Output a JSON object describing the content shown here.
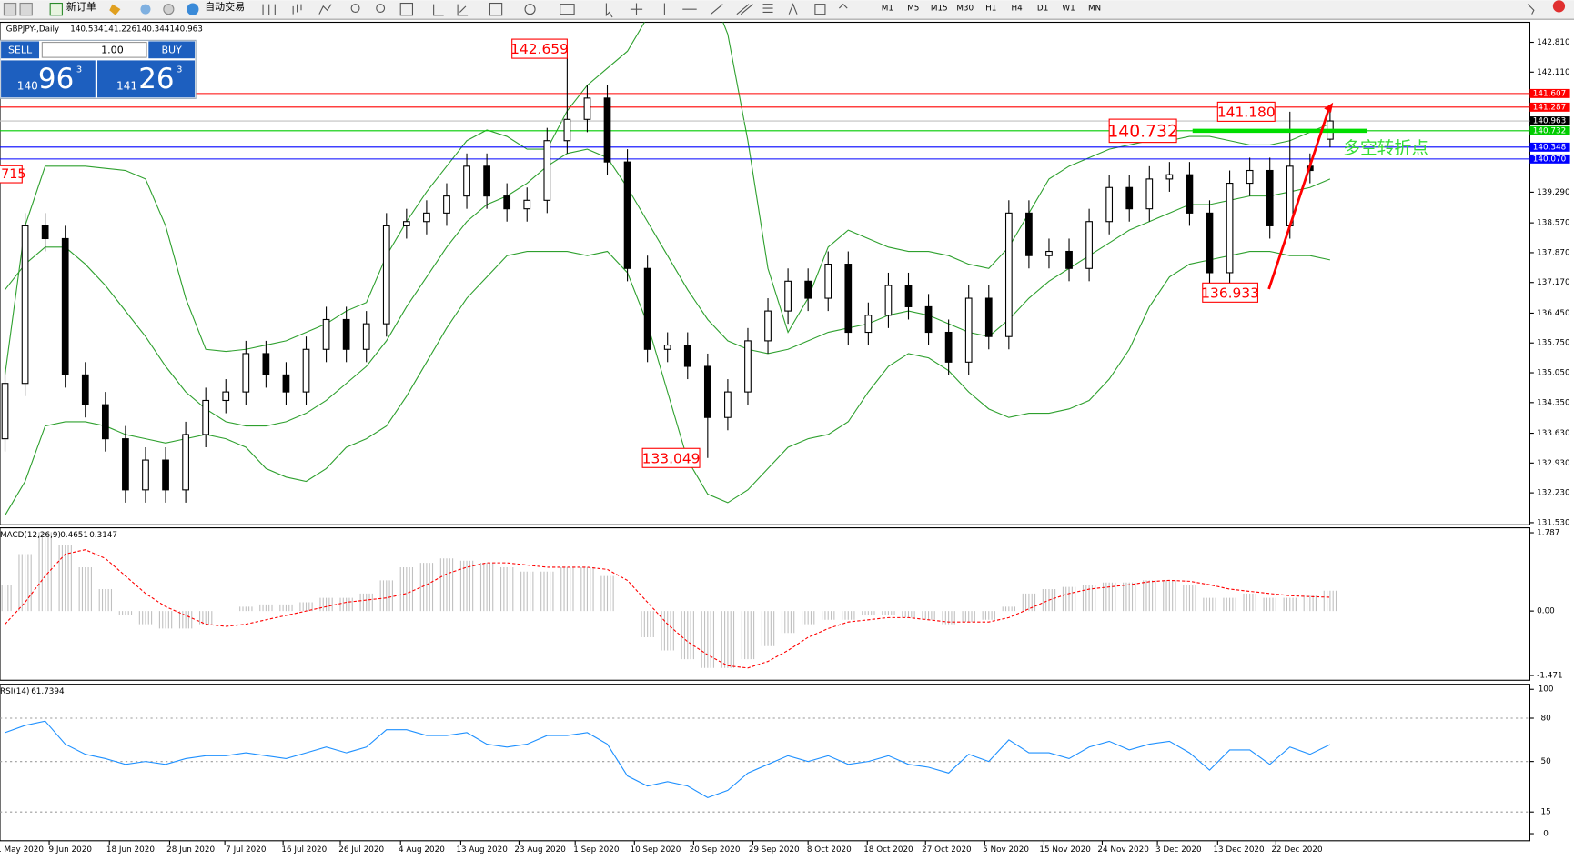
{
  "toolbar": {
    "new_order": "新订单",
    "auto_trading": "自动交易",
    "timeframes": [
      "M1",
      "M5",
      "M15",
      "M30",
      "H1",
      "H4",
      "D1",
      "W1",
      "MN"
    ]
  },
  "trade_panel": {
    "sell": "SELL",
    "buy": "BUY",
    "volume": "1.00",
    "sell_big": "140",
    "sell_pips": "96",
    "sell_point": "3",
    "buy_big": "141",
    "buy_pips": "26",
    "buy_point": "3"
  },
  "chart_data": {
    "type": "candlestick",
    "symbol": "GBPJPY-,Daily",
    "open": [
      133.5,
      134.8,
      138.5,
      138.2,
      135.0,
      134.3,
      133.5,
      132.3,
      133.0,
      132.3,
      133.6,
      134.4,
      134.6,
      135.5,
      135.0,
      134.6,
      135.6,
      136.3,
      135.6,
      136.2,
      138.5,
      138.6,
      138.8,
      139.2,
      139.9,
      139.2,
      138.9,
      139.1,
      140.5,
      141.0,
      141.5,
      140.0,
      137.5,
      135.6,
      135.7,
      135.2,
      134.0,
      134.6,
      135.8,
      136.5,
      137.2,
      136.8,
      137.6,
      136.0,
      136.4,
      137.1,
      136.6,
      136.0,
      135.3,
      136.8,
      135.9,
      138.8,
      137.8,
      137.9,
      137.5,
      138.6,
      139.4,
      138.9,
      139.6,
      139.7,
      138.8,
      137.4,
      139.5,
      139.8,
      138.5,
      139.9,
      140.534
    ],
    "high": [
      135.1,
      138.8,
      138.8,
      138.5,
      135.3,
      134.6,
      133.8,
      133.3,
      133.3,
      133.9,
      134.7,
      134.9,
      135.8,
      135.8,
      135.3,
      135.9,
      136.6,
      136.6,
      136.5,
      138.8,
      138.9,
      139.1,
      139.5,
      140.2,
      140.2,
      139.5,
      139.4,
      140.8,
      142.659,
      141.8,
      141.8,
      140.3,
      137.8,
      136.0,
      136.0,
      135.5,
      134.9,
      136.1,
      136.8,
      137.5,
      137.5,
      137.9,
      137.9,
      136.7,
      137.4,
      137.4,
      136.9,
      136.3,
      137.1,
      137.1,
      139.1,
      139.1,
      138.2,
      138.2,
      138.9,
      139.7,
      139.7,
      139.9,
      140.0,
      140.0,
      139.1,
      139.8,
      140.1,
      140.1,
      141.18,
      140.2,
      141.226
    ],
    "low": [
      133.2,
      134.5,
      137.9,
      134.7,
      134.0,
      133.2,
      132.0,
      132.0,
      132.0,
      132.0,
      133.3,
      134.1,
      134.3,
      134.7,
      134.3,
      134.3,
      135.3,
      135.3,
      135.3,
      135.9,
      138.2,
      138.3,
      138.5,
      138.9,
      138.9,
      138.6,
      138.6,
      138.8,
      140.2,
      140.7,
      139.7,
      137.2,
      135.3,
      135.3,
      134.9,
      133.049,
      133.7,
      134.3,
      135.5,
      136.2,
      136.5,
      136.5,
      135.7,
      135.7,
      136.1,
      136.3,
      135.7,
      135.0,
      135.0,
      135.6,
      135.6,
      137.5,
      137.5,
      137.2,
      137.2,
      138.3,
      138.6,
      138.6,
      139.3,
      138.5,
      136.933,
      137.1,
      139.2,
      138.2,
      138.2,
      139.5,
      140.344
    ],
    "close": [
      134.8,
      138.5,
      138.2,
      135.0,
      134.3,
      133.5,
      132.3,
      133.0,
      132.3,
      133.6,
      134.4,
      134.6,
      135.5,
      135.0,
      134.6,
      135.6,
      136.3,
      135.6,
      136.2,
      138.5,
      138.6,
      138.8,
      139.2,
      139.9,
      139.2,
      138.9,
      139.1,
      140.5,
      141.0,
      141.5,
      140.0,
      137.5,
      135.6,
      135.7,
      135.2,
      134.0,
      134.6,
      135.8,
      136.5,
      137.2,
      136.8,
      137.6,
      136.0,
      136.4,
      137.1,
      136.6,
      136.0,
      135.3,
      136.8,
      135.9,
      138.8,
      137.8,
      137.9,
      137.5,
      138.6,
      139.4,
      138.9,
      139.6,
      139.7,
      138.8,
      137.4,
      139.5,
      139.8,
      138.5,
      139.9,
      139.8,
      140.963
    ],
    "ylim": [
      131.48,
      143.28
    ],
    "yticks": [
      {
        "value": 142.81,
        "label": "142.810"
      },
      {
        "value": 142.11,
        "label": "142.110"
      },
      {
        "value": 139.29,
        "label": "139.290"
      },
      {
        "value": 138.57,
        "label": "138.570"
      },
      {
        "value": 137.87,
        "label": "137.870"
      },
      {
        "value": 137.17,
        "label": "137.170"
      },
      {
        "value": 136.45,
        "label": "136.450"
      },
      {
        "value": 135.75,
        "label": "135.750"
      },
      {
        "value": 135.05,
        "label": "135.050"
      },
      {
        "value": 134.35,
        "label": "134.350"
      },
      {
        "value": 133.63,
        "label": "133.630"
      },
      {
        "value": 132.93,
        "label": "132.930"
      },
      {
        "value": 132.23,
        "label": "132.230"
      },
      {
        "value": 131.53,
        "label": "131.530"
      }
    ],
    "levels": [
      {
        "value": 141.607,
        "color": "#ff0000"
      },
      {
        "value": 141.287,
        "color": "#ff0000"
      },
      {
        "value": 140.963,
        "color": "#c0c0c0"
      },
      {
        "value": 140.732,
        "color": "#00cc00"
      },
      {
        "value": 140.348,
        "color": "#0000ff"
      },
      {
        "value": 140.07,
        "label": "140.070",
        "color": "#0000ff"
      }
    ],
    "bands": {
      "color": "#2ea02e",
      "upper": [
        135.0,
        138.5,
        139.9,
        139.9,
        139.9,
        139.85,
        139.8,
        139.6,
        138.5,
        136.8,
        135.6,
        135.55,
        135.6,
        135.7,
        135.8,
        136.0,
        136.2,
        136.5,
        136.7,
        137.8,
        138.6,
        139.3,
        139.9,
        140.5,
        140.75,
        140.6,
        140.3,
        140.3,
        141.2,
        141.8,
        142.2,
        142.6,
        143.4,
        144.2,
        144.5,
        144.2,
        143.0,
        140.5,
        137.5,
        136.0,
        136.8,
        138.0,
        138.4,
        138.2,
        138.0,
        137.9,
        137.9,
        137.8,
        137.6,
        137.5,
        138.0,
        138.8,
        139.6,
        139.9,
        140.1,
        140.3,
        140.4,
        140.5,
        140.5,
        140.6,
        140.6,
        140.5,
        140.4,
        140.4,
        140.5,
        140.7,
        140.9
      ],
      "middle": [
        137.0,
        137.6,
        138.0,
        138.0,
        137.6,
        137.1,
        136.5,
        135.9,
        135.2,
        134.6,
        134.2,
        133.9,
        133.8,
        133.8,
        133.9,
        134.1,
        134.4,
        134.8,
        135.2,
        135.8,
        136.6,
        137.3,
        138.0,
        138.6,
        139.0,
        139.2,
        139.5,
        139.9,
        140.2,
        140.3,
        140.1,
        139.4,
        138.6,
        137.8,
        137.0,
        136.3,
        135.8,
        135.6,
        135.5,
        135.6,
        135.8,
        136.0,
        136.1,
        136.2,
        136.4,
        136.5,
        136.4,
        136.2,
        136.0,
        135.9,
        136.3,
        136.8,
        137.2,
        137.5,
        137.8,
        138.1,
        138.4,
        138.6,
        138.8,
        139.0,
        139.0,
        139.1,
        139.2,
        139.2,
        139.3,
        139.4,
        139.6
      ],
      "lower": [
        131.7,
        132.5,
        133.8,
        133.9,
        133.9,
        133.8,
        133.6,
        133.5,
        133.4,
        133.5,
        133.6,
        133.5,
        133.3,
        132.8,
        132.6,
        132.5,
        132.8,
        133.3,
        133.5,
        133.8,
        134.5,
        135.3,
        136.1,
        136.8,
        137.3,
        137.8,
        137.9,
        137.9,
        137.9,
        137.8,
        137.9,
        137.4,
        136.2,
        134.6,
        133.0,
        132.2,
        132.0,
        132.3,
        132.8,
        133.3,
        133.5,
        133.6,
        133.9,
        134.6,
        135.2,
        135.5,
        135.4,
        135.1,
        134.6,
        134.2,
        134.0,
        134.1,
        134.1,
        134.2,
        134.4,
        134.9,
        135.6,
        136.6,
        137.3,
        137.6,
        137.7,
        137.8,
        137.9,
        137.9,
        137.8,
        137.8,
        137.7
      ]
    },
    "price_labels": [
      {
        "value": 142.659
      },
      {
        "value": 140.732
      },
      {
        "value": 141.18,
        "label": "141.180"
      },
      {
        "value": 133.049
      },
      {
        "value": 136.933
      }
    ],
    "clipped_label": "715",
    "annotation": "多空转折点",
    "x_labels": [
      "1 May 2020",
      "9 Jun 2020",
      "18 Jun 2020",
      "28 Jun 2020",
      "7 Jul 2020",
      "16 Jul 2020",
      "26 Jul 2020",
      "4 Aug 2020",
      "13 Aug 2020",
      "23 Aug 2020",
      "1 Sep 2020",
      "10 Sep 2020",
      "20 Sep 2020",
      "29 Sep 2020",
      "8 Oct 2020",
      "18 Oct 2020",
      "27 Oct 2020",
      "5 Nov 2020",
      "15 Nov 2020",
      "24 Nov 2020",
      "3 Dec 2020",
      "13 Dec 2020",
      "22 Dec 2020"
    ],
    "macd": {
      "label": "MACD(12,26,9)",
      "ylim": [
        -1.58,
        1.9
      ],
      "yticks": [
        1.787,
        {
          "value": 0,
          "label": "0.00"
        },
        -1.471
      ],
      "histogram_color": "#c0c0c0",
      "signal_color": "#ff0000",
      "histogram": [
        0.6,
        1.3,
        1.8,
        1.5,
        1.0,
        0.5,
        -0.1,
        -0.3,
        -0.4,
        -0.4,
        -0.3,
        0.0,
        0.1,
        0.15,
        0.15,
        0.2,
        0.3,
        0.3,
        0.4,
        0.7,
        1.0,
        1.1,
        1.2,
        1.15,
        1.1,
        1.0,
        0.9,
        0.9,
        1.0,
        1.0,
        0.8,
        0.0,
        -0.6,
        -0.9,
        -1.1,
        -1.3,
        -1.3,
        -1.1,
        -0.8,
        -0.5,
        -0.3,
        -0.2,
        -0.2,
        -0.1,
        -0.1,
        -0.15,
        -0.2,
        -0.3,
        -0.25,
        -0.2,
        0.1,
        0.4,
        0.5,
        0.55,
        0.6,
        0.65,
        0.65,
        0.7,
        0.7,
        0.6,
        0.3,
        0.3,
        0.4,
        0.3,
        0.3,
        0.35,
        0.4651
      ],
      "signal": [
        -0.3,
        0.2,
        0.8,
        1.3,
        1.4,
        1.2,
        0.8,
        0.4,
        0.1,
        -0.1,
        -0.3,
        -0.35,
        -0.3,
        -0.2,
        -0.1,
        0.0,
        0.1,
        0.2,
        0.25,
        0.3,
        0.4,
        0.6,
        0.85,
        1.0,
        1.1,
        1.1,
        1.05,
        1.0,
        1.0,
        1.0,
        0.95,
        0.7,
        0.2,
        -0.3,
        -0.7,
        -1.0,
        -1.25,
        -1.3,
        -1.15,
        -0.9,
        -0.6,
        -0.4,
        -0.25,
        -0.2,
        -0.15,
        -0.15,
        -0.2,
        -0.25,
        -0.25,
        -0.25,
        -0.15,
        0.05,
        0.25,
        0.4,
        0.5,
        0.55,
        0.6,
        0.67,
        0.7,
        0.68,
        0.6,
        0.5,
        0.45,
        0.4,
        0.35,
        0.33,
        0.3147
      ]
    },
    "rsi": {
      "label": "RSI(14)",
      "ylim": [
        -4.9,
        103.5
      ],
      "yticks": [
        100,
        80,
        50,
        15,
        0
      ],
      "levels": [
        80,
        50,
        15
      ],
      "color": "#1e90ff",
      "values": [
        70,
        75,
        78,
        62,
        55,
        52,
        48,
        50,
        48,
        52,
        54,
        54,
        56,
        54,
        52,
        56,
        60,
        56,
        60,
        72,
        72,
        68,
        68,
        70,
        62,
        60,
        62,
        68,
        68,
        70,
        62,
        40,
        33,
        36,
        33,
        25,
        30,
        42,
        48,
        54,
        50,
        54,
        48,
        50,
        54,
        48,
        46,
        42,
        55,
        50,
        65,
        56,
        56,
        52,
        60,
        64,
        58,
        62,
        64,
        56,
        44,
        58,
        58,
        48,
        60,
        55,
        61.7394
      ]
    }
  }
}
